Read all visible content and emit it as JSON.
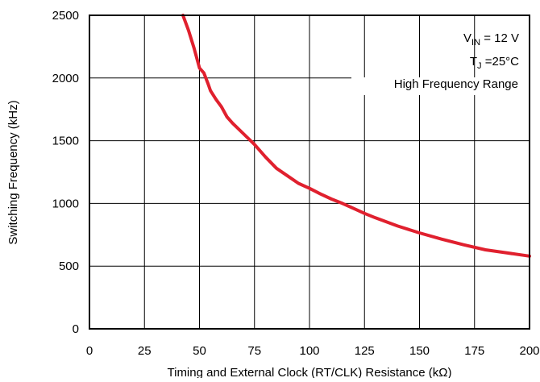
{
  "chart_data": {
    "type": "line",
    "title": "",
    "xlabel": "Timing and External Clock  (RT/CLK) Resistance  (kΩ)",
    "ylabel": "Switching Frequency (kHz)",
    "xlim": [
      0,
      200
    ],
    "ylim": [
      0,
      2500
    ],
    "x_ticks": [
      0,
      25,
      50,
      75,
      100,
      125,
      150,
      175,
      200
    ],
    "y_ticks": [
      0,
      500,
      1000,
      1500,
      2000,
      2500
    ],
    "grid": true,
    "series": [
      {
        "color": "#e0202e",
        "x": [
          42.5,
          45,
          47.5,
          50,
          52,
          54,
          55,
          57.5,
          60,
          62.5,
          65,
          70,
          75,
          80,
          85,
          90,
          95,
          100,
          105,
          110,
          115,
          120,
          125,
          130,
          140,
          150,
          160,
          170,
          180,
          190,
          200
        ],
        "y": [
          2500,
          2380,
          2240,
          2080,
          2040,
          1950,
          1900,
          1830,
          1770,
          1690,
          1640,
          1555,
          1470,
          1370,
          1280,
          1220,
          1160,
          1120,
          1075,
          1035,
          1000,
          960,
          920,
          885,
          820,
          765,
          715,
          670,
          630,
          605,
          580
        ]
      }
    ],
    "annotations": [
      {
        "id": "vin",
        "main": "V",
        "sub": "IN",
        "rest": " = 12 V"
      },
      {
        "id": "tj",
        "main": "T",
        "sub": "J",
        "rest": " =25°C"
      },
      {
        "id": "range",
        "text": "High Frequency Range"
      }
    ]
  }
}
